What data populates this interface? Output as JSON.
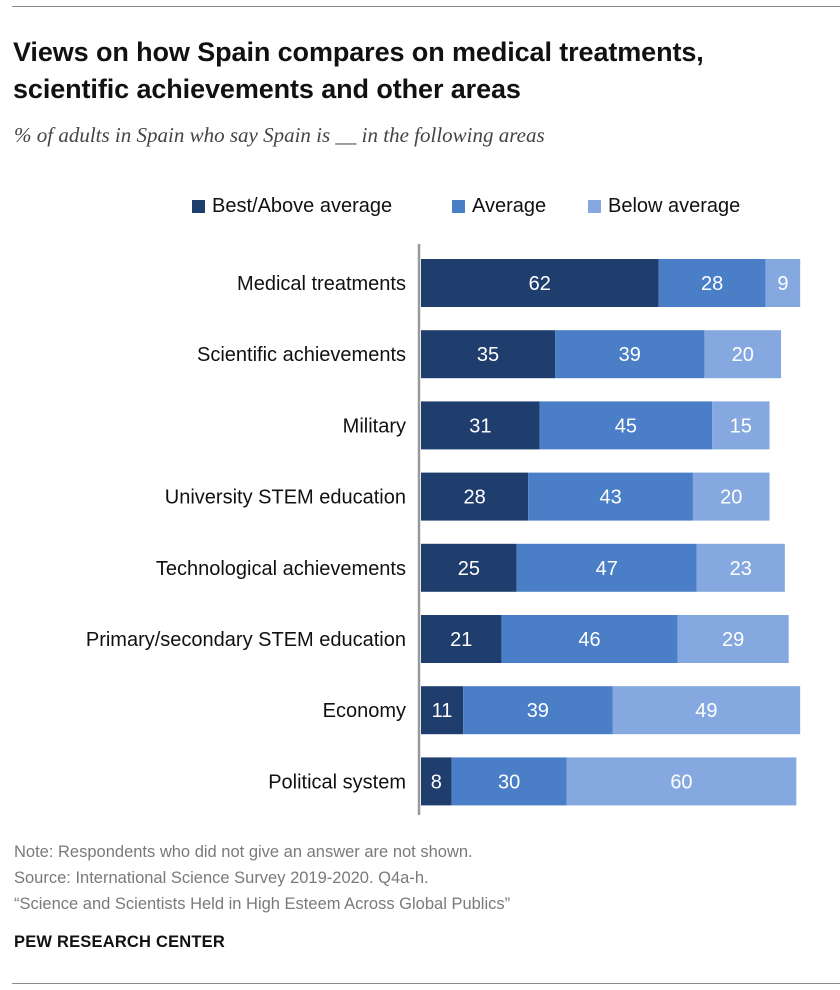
{
  "header": {
    "title": "Views on how Spain compares on medical treatments,\nscientific achievements and other areas",
    "subtitle": "% of adults in Spain who say Spain is __ in the following areas"
  },
  "colors": {
    "best": "#1f3e6e",
    "average": "#4a7fc8",
    "below": "#84a8df",
    "axis": "#999999"
  },
  "chart_data": {
    "type": "bar",
    "orientation": "horizontal",
    "stacked": true,
    "categories": [
      "Medical treatments",
      "Scientific achievements",
      "Military",
      "University STEM education",
      "Technological achievements",
      "Primary/secondary STEM education",
      "Economy",
      "Political system"
    ],
    "series": [
      {
        "name": "Best/Above average",
        "key": "best",
        "values": [
          62,
          35,
          31,
          28,
          25,
          21,
          11,
          8
        ]
      },
      {
        "name": "Average",
        "key": "average",
        "values": [
          28,
          39,
          45,
          43,
          47,
          46,
          39,
          30
        ]
      },
      {
        "name": "Below average",
        "key": "below",
        "values": [
          9,
          20,
          15,
          20,
          23,
          29,
          49,
          60
        ]
      }
    ],
    "xlim": [
      0,
      100
    ],
    "legend_position": "top"
  },
  "footer": {
    "note": "Note: Respondents who did not give an answer are not shown.",
    "source": "Source: International Science Survey 2019-2020. Q4a-h.",
    "report": "“Science and Scientists Held in High Esteem Across Global Publics”",
    "brand": "PEW RESEARCH CENTER"
  }
}
